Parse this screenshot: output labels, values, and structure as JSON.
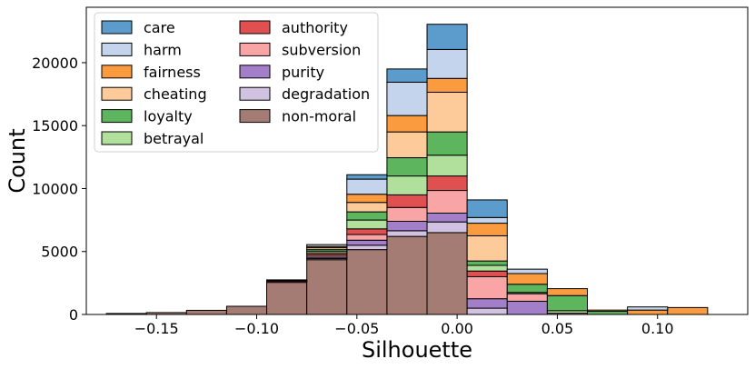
{
  "chart_data": {
    "type": "bar",
    "stacked": true,
    "title": "",
    "xlabel": "Silhouette",
    "ylabel": "Count",
    "xlim": [
      -0.185,
      0.145
    ],
    "ylim": [
      0,
      24400
    ],
    "xticks": [
      -0.15,
      -0.1,
      -0.05,
      0.0,
      0.05,
      0.1
    ],
    "xtick_labels": [
      "−0.15",
      "−0.10",
      "−0.05",
      "0.00",
      "0.05",
      "0.10"
    ],
    "yticks": [
      0,
      5000,
      10000,
      15000,
      20000
    ],
    "ytick_labels": [
      "0",
      "5000",
      "10000",
      "15000",
      "20000"
    ],
    "bin_edges": [
      -0.175,
      -0.155,
      -0.135,
      -0.115,
      -0.095,
      -0.075,
      -0.055,
      -0.035,
      -0.015,
      0.005,
      0.025,
      0.045,
      0.065,
      0.085,
      0.105,
      0.125
    ],
    "legend_position": "upper-left",
    "series": [
      {
        "name": "non-moral",
        "color": "#a57c73",
        "values": [
          80,
          150,
          330,
          650,
          2550,
          4350,
          5150,
          6200,
          6500,
          0,
          0,
          0,
          0,
          0,
          0
        ]
      },
      {
        "name": "degradation",
        "color": "#d2c2e1",
        "values": [
          0,
          0,
          0,
          0,
          0,
          100,
          350,
          450,
          850,
          500,
          0,
          0,
          0,
          0,
          0
        ]
      },
      {
        "name": "purity",
        "color": "#a47fc9",
        "values": [
          0,
          0,
          0,
          0,
          0,
          100,
          400,
          750,
          700,
          750,
          1050,
          0,
          0,
          0,
          0
        ]
      },
      {
        "name": "subversion",
        "color": "#f9a5a5",
        "values": [
          0,
          0,
          0,
          0,
          0,
          150,
          450,
          1100,
          1800,
          1750,
          600,
          100,
          0,
          0,
          0
        ]
      },
      {
        "name": "authority",
        "color": "#e05050",
        "values": [
          0,
          0,
          0,
          0,
          100,
          150,
          450,
          1000,
          1150,
          450,
          0,
          0,
          0,
          0,
          0
        ]
      },
      {
        "name": "betrayal",
        "color": "#b0e09c",
        "values": [
          0,
          0,
          0,
          0,
          50,
          150,
          700,
          1500,
          1650,
          450,
          100,
          200,
          0,
          0,
          0
        ]
      },
      {
        "name": "loyalty",
        "color": "#5db55d",
        "values": [
          0,
          0,
          0,
          0,
          50,
          150,
          650,
          1450,
          1850,
          350,
          650,
          1200,
          250,
          0,
          0
        ]
      },
      {
        "name": "cheating",
        "color": "#fdcb9a",
        "values": [
          0,
          0,
          0,
          0,
          0,
          150,
          750,
          2050,
          3150,
          2000,
          0,
          0,
          0,
          0,
          0
        ]
      },
      {
        "name": "fairness",
        "color": "#fb9b40",
        "values": [
          0,
          0,
          0,
          0,
          0,
          100,
          650,
          1300,
          1100,
          1000,
          850,
          550,
          100,
          350,
          550
        ]
      },
      {
        "name": "harm",
        "color": "#c3d4ec",
        "values": [
          0,
          0,
          0,
          0,
          0,
          150,
          1200,
          2650,
          2300,
          450,
          350,
          0,
          0,
          250,
          0
        ]
      },
      {
        "name": "care",
        "color": "#5b9ccc",
        "values": [
          0,
          0,
          0,
          0,
          0,
          0,
          350,
          1050,
          2000,
          1400,
          0,
          0,
          0,
          0,
          0
        ]
      }
    ],
    "legend_order": [
      "care",
      "harm",
      "fairness",
      "cheating",
      "loyalty",
      "betrayal",
      "authority",
      "subversion",
      "purity",
      "degradation",
      "non-moral"
    ]
  }
}
